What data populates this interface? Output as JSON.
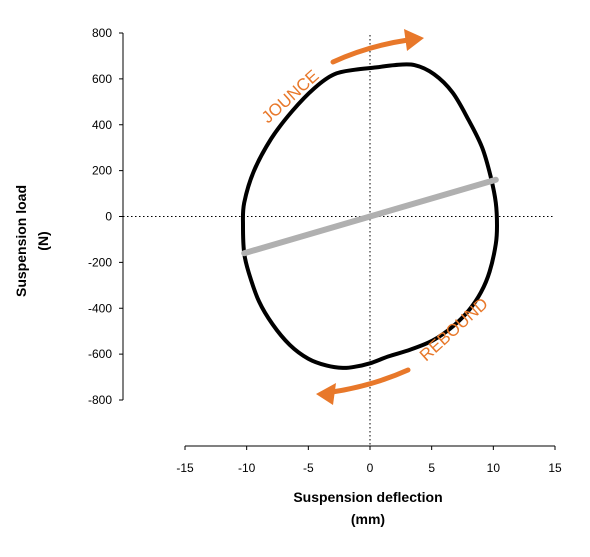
{
  "chart_data": {
    "type": "line",
    "title": "",
    "xlabel_line1": "Suspension deflection",
    "xlabel_line2": "(mm)",
    "ylabel_line1": "Suspension load",
    "ylabel_line2": "(N)",
    "xlim": [
      -15,
      15
    ],
    "ylim": [
      -800,
      800
    ],
    "x_ticks": [
      -15,
      -10,
      -5,
      0,
      5,
      10,
      15
    ],
    "y_ticks": [
      800,
      600,
      400,
      200,
      0,
      -200,
      -400,
      -600,
      -800
    ],
    "grid": false,
    "reference_lines": [
      {
        "orientation": "horizontal",
        "value": 0,
        "style": "dotted"
      },
      {
        "orientation": "vertical",
        "value": 0,
        "style": "dotted"
      }
    ],
    "series": [
      {
        "kind": "hysteresis-loop",
        "color": "#000000",
        "x": [
          -10.2,
          -10.3,
          -10.2,
          -9.4,
          -8.0,
          -6.3,
          -4.5,
          -2.9,
          -1.2,
          0.5,
          2.0,
          3.6,
          5.2,
          6.7,
          8.0,
          9.1,
          9.8,
          10.2,
          10.3,
          10.2,
          9.7,
          9.0,
          8.0,
          6.7,
          5.1,
          3.3,
          1.5,
          0.0,
          -1.2,
          -2.2,
          -3.5,
          -5.0,
          -6.5,
          -7.9,
          -9.0,
          -9.8,
          -10.2
        ],
        "y": [
          -160,
          -40,
          60,
          200,
          340,
          460,
          560,
          620,
          640,
          650,
          660,
          660,
          620,
          540,
          420,
          300,
          170,
          60,
          -40,
          -120,
          -240,
          -330,
          -410,
          -480,
          -540,
          -580,
          -610,
          -640,
          -655,
          -660,
          -650,
          -620,
          -560,
          -470,
          -370,
          -250,
          -160
        ]
      },
      {
        "kind": "linear-stiffness",
        "color": "#b0b0b0",
        "x": [
          -10.2,
          10.2
        ],
        "y": [
          -160,
          160
        ]
      }
    ],
    "annotations": [
      {
        "text": "JOUNCE",
        "color": "#e8782a"
      },
      {
        "text": "REBOUND",
        "color": "#e8782a"
      }
    ],
    "colors": {
      "accent": "#e8782a",
      "loop": "#000000",
      "stiffness": "#b0b0b0"
    }
  }
}
